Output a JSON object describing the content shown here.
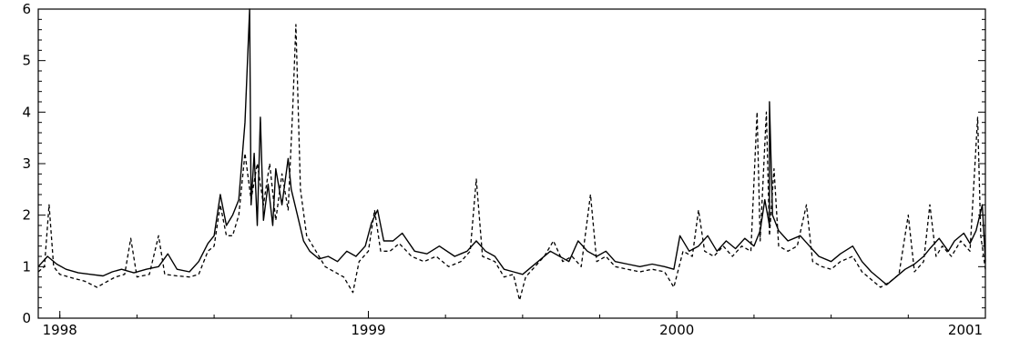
{
  "chart_data": {
    "type": "line",
    "title": "",
    "xlabel": "",
    "ylabel": "",
    "xlim": [
      1997.93,
      2001.0
    ],
    "ylim": [
      0,
      6
    ],
    "y_ticks": [
      0,
      1,
      2,
      3,
      4,
      5,
      6
    ],
    "y_tick_labels": [
      "0",
      "1",
      "2",
      "3",
      "4",
      "5",
      "6"
    ],
    "x_ticks": [
      1998,
      1999,
      2000,
      2001
    ],
    "x_tick_labels": [
      "1998",
      "1999",
      "2000",
      "2001"
    ],
    "grid": false,
    "legend": "none",
    "series": [
      {
        "style": "solid",
        "color": "#000000",
        "points": [
          [
            1997.93,
            1.0
          ],
          [
            1997.96,
            1.2
          ],
          [
            1997.99,
            1.05
          ],
          [
            1998.02,
            0.95
          ],
          [
            1998.06,
            0.88
          ],
          [
            1998.1,
            0.85
          ],
          [
            1998.14,
            0.82
          ],
          [
            1998.17,
            0.9
          ],
          [
            1998.2,
            0.95
          ],
          [
            1998.24,
            0.88
          ],
          [
            1998.28,
            0.95
          ],
          [
            1998.32,
            1.0
          ],
          [
            1998.35,
            1.25
          ],
          [
            1998.38,
            0.95
          ],
          [
            1998.42,
            0.9
          ],
          [
            1998.45,
            1.1
          ],
          [
            1998.48,
            1.45
          ],
          [
            1998.5,
            1.6
          ],
          [
            1998.52,
            2.4
          ],
          [
            1998.54,
            1.8
          ],
          [
            1998.56,
            2.0
          ],
          [
            1998.58,
            2.3
          ],
          [
            1998.6,
            3.8
          ],
          [
            1998.615,
            6.0
          ],
          [
            1998.62,
            2.2
          ],
          [
            1998.63,
            3.2
          ],
          [
            1998.64,
            1.8
          ],
          [
            1998.65,
            3.9
          ],
          [
            1998.66,
            1.9
          ],
          [
            1998.675,
            2.6
          ],
          [
            1998.69,
            1.8
          ],
          [
            1998.7,
            2.9
          ],
          [
            1998.72,
            2.2
          ],
          [
            1998.74,
            3.1
          ],
          [
            1998.75,
            2.5
          ],
          [
            1998.77,
            2.0
          ],
          [
            1998.79,
            1.5
          ],
          [
            1998.81,
            1.3
          ],
          [
            1998.84,
            1.15
          ],
          [
            1998.87,
            1.2
          ],
          [
            1998.9,
            1.1
          ],
          [
            1998.93,
            1.3
          ],
          [
            1998.96,
            1.2
          ],
          [
            1998.99,
            1.4
          ],
          [
            1999.01,
            1.85
          ],
          [
            1999.03,
            2.1
          ],
          [
            1999.05,
            1.5
          ],
          [
            1999.08,
            1.5
          ],
          [
            1999.11,
            1.65
          ],
          [
            1999.15,
            1.3
          ],
          [
            1999.19,
            1.25
          ],
          [
            1999.23,
            1.4
          ],
          [
            1999.28,
            1.2
          ],
          [
            1999.32,
            1.3
          ],
          [
            1999.35,
            1.5
          ],
          [
            1999.38,
            1.3
          ],
          [
            1999.41,
            1.2
          ],
          [
            1999.44,
            0.95
          ],
          [
            1999.47,
            0.9
          ],
          [
            1999.5,
            0.85
          ],
          [
            1999.53,
            1.0
          ],
          [
            1999.56,
            1.15
          ],
          [
            1999.59,
            1.3
          ],
          [
            1999.62,
            1.2
          ],
          [
            1999.65,
            1.1
          ],
          [
            1999.68,
            1.5
          ],
          [
            1999.71,
            1.3
          ],
          [
            1999.74,
            1.2
          ],
          [
            1999.77,
            1.3
          ],
          [
            1999.8,
            1.1
          ],
          [
            1999.84,
            1.05
          ],
          [
            1999.88,
            1.0
          ],
          [
            1999.92,
            1.05
          ],
          [
            1999.96,
            1.0
          ],
          [
            1999.99,
            0.95
          ],
          [
            2000.01,
            1.6
          ],
          [
            2000.04,
            1.3
          ],
          [
            2000.07,
            1.4
          ],
          [
            2000.1,
            1.6
          ],
          [
            2000.13,
            1.3
          ],
          [
            2000.16,
            1.5
          ],
          [
            2000.19,
            1.35
          ],
          [
            2000.22,
            1.55
          ],
          [
            2000.25,
            1.4
          ],
          [
            2000.27,
            1.7
          ],
          [
            2000.285,
            2.3
          ],
          [
            2000.3,
            1.8
          ],
          [
            2000.3,
            4.2
          ],
          [
            2000.31,
            2.0
          ],
          [
            2000.33,
            1.7
          ],
          [
            2000.36,
            1.5
          ],
          [
            2000.4,
            1.6
          ],
          [
            2000.43,
            1.4
          ],
          [
            2000.46,
            1.2
          ],
          [
            2000.5,
            1.1
          ],
          [
            2000.53,
            1.25
          ],
          [
            2000.57,
            1.4
          ],
          [
            2000.6,
            1.1
          ],
          [
            2000.63,
            0.9
          ],
          [
            2000.66,
            0.75
          ],
          [
            2000.68,
            0.65
          ],
          [
            2000.71,
            0.8
          ],
          [
            2000.74,
            0.95
          ],
          [
            2000.77,
            1.05
          ],
          [
            2000.8,
            1.2
          ],
          [
            2000.82,
            1.35
          ],
          [
            2000.85,
            1.55
          ],
          [
            2000.88,
            1.3
          ],
          [
            2000.9,
            1.5
          ],
          [
            2000.93,
            1.65
          ],
          [
            2000.95,
            1.45
          ],
          [
            2000.97,
            1.7
          ],
          [
            2000.99,
            2.2
          ],
          [
            2001.0,
            1.1
          ]
        ]
      },
      {
        "style": "dashed",
        "color": "#000000",
        "points": [
          [
            1997.93,
            0.9
          ],
          [
            1997.95,
            1.0
          ],
          [
            1997.965,
            2.2
          ],
          [
            1997.98,
            1.0
          ],
          [
            1998.0,
            0.85
          ],
          [
            1998.04,
            0.78
          ],
          [
            1998.08,
            0.72
          ],
          [
            1998.12,
            0.6
          ],
          [
            1998.15,
            0.7
          ],
          [
            1998.18,
            0.8
          ],
          [
            1998.21,
            0.85
          ],
          [
            1998.23,
            1.55
          ],
          [
            1998.25,
            0.8
          ],
          [
            1998.29,
            0.85
          ],
          [
            1998.32,
            1.6
          ],
          [
            1998.34,
            0.85
          ],
          [
            1998.38,
            0.82
          ],
          [
            1998.42,
            0.8
          ],
          [
            1998.45,
            0.85
          ],
          [
            1998.48,
            1.3
          ],
          [
            1998.5,
            1.4
          ],
          [
            1998.52,
            2.2
          ],
          [
            1998.54,
            1.6
          ],
          [
            1998.56,
            1.6
          ],
          [
            1998.58,
            2.0
          ],
          [
            1998.6,
            3.2
          ],
          [
            1998.62,
            2.3
          ],
          [
            1998.64,
            3.0
          ],
          [
            1998.66,
            2.2
          ],
          [
            1998.68,
            3.0
          ],
          [
            1998.7,
            1.9
          ],
          [
            1998.72,
            2.8
          ],
          [
            1998.74,
            2.1
          ],
          [
            1998.755,
            4.1
          ],
          [
            1998.765,
            5.7
          ],
          [
            1998.78,
            2.5
          ],
          [
            1998.8,
            1.6
          ],
          [
            1998.83,
            1.3
          ],
          [
            1998.86,
            1.0
          ],
          [
            1998.89,
            0.9
          ],
          [
            1998.92,
            0.8
          ],
          [
            1998.95,
            0.5
          ],
          [
            1998.97,
            1.1
          ],
          [
            1999.0,
            1.3
          ],
          [
            1999.02,
            2.1
          ],
          [
            1999.04,
            1.3
          ],
          [
            1999.07,
            1.3
          ],
          [
            1999.1,
            1.45
          ],
          [
            1999.14,
            1.2
          ],
          [
            1999.18,
            1.1
          ],
          [
            1999.22,
            1.2
          ],
          [
            1999.26,
            1.0
          ],
          [
            1999.3,
            1.1
          ],
          [
            1999.33,
            1.3
          ],
          [
            1999.35,
            2.7
          ],
          [
            1999.37,
            1.2
          ],
          [
            1999.41,
            1.1
          ],
          [
            1999.44,
            0.8
          ],
          [
            1999.47,
            0.85
          ],
          [
            1999.49,
            0.35
          ],
          [
            1999.51,
            0.8
          ],
          [
            1999.54,
            1.0
          ],
          [
            1999.57,
            1.2
          ],
          [
            1999.6,
            1.5
          ],
          [
            1999.63,
            1.1
          ],
          [
            1999.66,
            1.2
          ],
          [
            1999.69,
            1.0
          ],
          [
            1999.72,
            2.4
          ],
          [
            1999.74,
            1.1
          ],
          [
            1999.77,
            1.2
          ],
          [
            1999.8,
            1.0
          ],
          [
            1999.84,
            0.95
          ],
          [
            1999.88,
            0.9
          ],
          [
            1999.92,
            0.95
          ],
          [
            1999.96,
            0.9
          ],
          [
            1999.99,
            0.6
          ],
          [
            2000.02,
            1.3
          ],
          [
            2000.05,
            1.2
          ],
          [
            2000.07,
            2.1
          ],
          [
            2000.09,
            1.3
          ],
          [
            2000.12,
            1.2
          ],
          [
            2000.15,
            1.4
          ],
          [
            2000.18,
            1.2
          ],
          [
            2000.21,
            1.4
          ],
          [
            2000.24,
            1.3
          ],
          [
            2000.26,
            4.0
          ],
          [
            2000.27,
            1.5
          ],
          [
            2000.29,
            4.0
          ],
          [
            2000.3,
            1.6
          ],
          [
            2000.315,
            2.9
          ],
          [
            2000.33,
            1.4
          ],
          [
            2000.36,
            1.3
          ],
          [
            2000.39,
            1.4
          ],
          [
            2000.42,
            2.2
          ],
          [
            2000.44,
            1.1
          ],
          [
            2000.47,
            1.0
          ],
          [
            2000.5,
            0.95
          ],
          [
            2000.53,
            1.1
          ],
          [
            2000.57,
            1.2
          ],
          [
            2000.6,
            0.9
          ],
          [
            2000.63,
            0.75
          ],
          [
            2000.66,
            0.6
          ],
          [
            2000.69,
            0.7
          ],
          [
            2000.72,
            0.85
          ],
          [
            2000.75,
            2.0
          ],
          [
            2000.77,
            0.9
          ],
          [
            2000.8,
            1.1
          ],
          [
            2000.82,
            2.2
          ],
          [
            2000.84,
            1.2
          ],
          [
            2000.86,
            1.4
          ],
          [
            2000.89,
            1.2
          ],
          [
            2000.92,
            1.5
          ],
          [
            2000.95,
            1.3
          ],
          [
            2000.975,
            3.9
          ],
          [
            2000.985,
            1.6
          ],
          [
            2001.0,
            0.95
          ]
        ]
      }
    ]
  }
}
